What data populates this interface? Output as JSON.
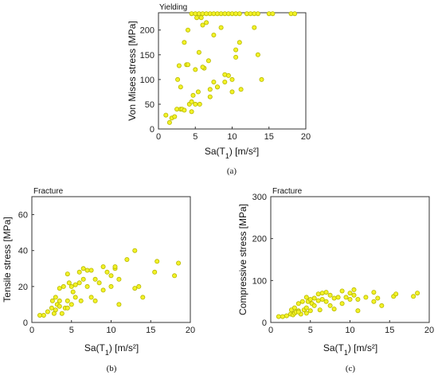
{
  "colors": {
    "marker_fill": "#f2f227",
    "marker_stroke": "#b8b800",
    "axis": "#333333"
  },
  "chart_data": [
    {
      "id": "a",
      "type": "scatter",
      "title": "Yielding",
      "caption": "(a)",
      "xlabel_main": "Sa(T",
      "xlabel_sub": "1",
      "xlabel_tail": ") [m/s²]",
      "ylabel": "Von Mises stress [MPa]",
      "xlim": [
        0,
        20
      ],
      "ylim": [
        0,
        235
      ],
      "xticks": [
        "0",
        "5",
        "10",
        "15",
        "20"
      ],
      "yticks": [
        "0",
        "50",
        "100",
        "150",
        "200"
      ],
      "x": [
        1.0,
        1.5,
        1.8,
        2.2,
        2.5,
        2.6,
        2.8,
        3.0,
        3.2,
        3.5,
        3.8,
        4.0,
        4.2,
        4.5,
        4.7,
        5.0,
        5.2,
        5.4,
        5.6,
        5.8,
        6.0,
        6.2,
        6.5,
        6.8,
        7.0,
        7.5,
        8.0,
        8.5,
        9.0,
        9.5,
        10.0,
        10.5,
        11.0,
        11.2,
        3.0,
        3.5,
        4.0,
        4.5,
        5.0,
        5.5,
        6.0,
        7.0,
        7.5,
        8.0,
        9.0,
        10.0,
        10.5,
        13.0,
        13.5,
        14.0,
        4.5,
        5.0,
        5.5,
        6.0,
        6.5,
        7.0,
        7.5,
        8.0,
        8.5,
        9.0,
        9.5,
        10.0,
        10.5,
        11.0,
        12.0,
        12.5,
        13.0,
        13.5,
        15.0,
        15.5,
        18.0,
        18.5
      ],
      "y": [
        28,
        13,
        22,
        25,
        40,
        100,
        128,
        40,
        40,
        38,
        130,
        200,
        50,
        55,
        68,
        50,
        225,
        75,
        50,
        225,
        210,
        123,
        215,
        138,
        65,
        190,
        85,
        205,
        110,
        108,
        100,
        145,
        175,
        80,
        85,
        175,
        130,
        35,
        120,
        155,
        125,
        80,
        95,
        85,
        95,
        75,
        160,
        205,
        150,
        100,
        233,
        233,
        233,
        233,
        233,
        233,
        233,
        233,
        233,
        233,
        233,
        233,
        233,
        233,
        233,
        233,
        233,
        233,
        233,
        233,
        233,
        233
      ]
    },
    {
      "id": "b",
      "type": "scatter",
      "title": "Fracture",
      "caption": "(b)",
      "xlabel_main": "Sa(T",
      "xlabel_sub": "1",
      "xlabel_tail": ") [m/s²]",
      "ylabel": "Tensile stress [MPa]",
      "xlim": [
        0,
        20
      ],
      "ylim": [
        0,
        70
      ],
      "xticks": [
        "0",
        "5",
        "10",
        "15",
        "20"
      ],
      "yticks": [
        "0",
        "20",
        "40",
        "60"
      ],
      "x": [
        1.0,
        1.5,
        2.0,
        2.5,
        2.6,
        2.8,
        3.0,
        3.0,
        3.2,
        3.5,
        3.5,
        3.8,
        4.0,
        4.2,
        4.5,
        4.5,
        4.7,
        5.0,
        5.0,
        5.2,
        5.5,
        5.5,
        6.0,
        6.0,
        6.2,
        6.5,
        6.5,
        7.0,
        7.0,
        7.5,
        7.5,
        8.0,
        8.0,
        8.5,
        9.0,
        9.0,
        9.5,
        10.0,
        10.0,
        10.5,
        10.5,
        11.0,
        11.0,
        12.0,
        13.0,
        13.0,
        13.5,
        14.0,
        15.5,
        15.8,
        18.0,
        18.5,
        3.5,
        4.5
      ],
      "y": [
        4,
        4,
        6,
        8,
        12,
        5,
        7,
        14,
        10,
        9,
        19,
        5,
        20,
        8,
        27,
        12,
        22,
        10,
        20,
        17,
        14,
        21,
        28,
        22,
        12,
        24,
        30,
        20,
        29,
        14,
        29,
        24,
        12,
        22,
        31,
        18,
        28,
        20,
        26,
        30,
        31,
        10,
        24,
        35,
        19,
        40,
        20,
        14,
        28,
        34,
        26,
        33,
        12,
        8
      ]
    },
    {
      "id": "c",
      "type": "scatter",
      "title": "Fracture",
      "caption": "(c)",
      "xlabel_main": "Sa(T",
      "xlabel_sub": "1",
      "xlabel_tail": ") [m/s²]",
      "ylabel": "Compressive stress [MPa]",
      "xlim": [
        0,
        20
      ],
      "ylim": [
        0,
        300
      ],
      "xticks": [
        "0",
        "5",
        "10",
        "15",
        "20"
      ],
      "yticks": [
        "0",
        "100",
        "200",
        "300"
      ],
      "x": [
        1.0,
        1.5,
        2.0,
        2.5,
        2.6,
        2.8,
        3.0,
        3.0,
        3.2,
        3.5,
        3.5,
        3.8,
        4.0,
        4.2,
        4.5,
        4.5,
        4.7,
        5.0,
        5.0,
        5.2,
        5.5,
        5.5,
        6.0,
        6.0,
        6.2,
        6.5,
        6.5,
        7.0,
        7.0,
        7.5,
        7.5,
        8.0,
        8.0,
        8.5,
        9.0,
        9.0,
        9.5,
        10.0,
        10.0,
        10.5,
        10.5,
        11.0,
        11.0,
        12.0,
        13.0,
        13.0,
        13.5,
        14.0,
        15.5,
        15.8,
        18.0,
        18.5,
        3.5,
        4.5
      ],
      "y": [
        14,
        14,
        16,
        20,
        30,
        18,
        22,
        35,
        25,
        28,
        45,
        20,
        50,
        30,
        60,
        35,
        50,
        28,
        55,
        45,
        40,
        58,
        68,
        52,
        30,
        55,
        70,
        50,
        72,
        40,
        65,
        58,
        32,
        60,
        75,
        45,
        60,
        55,
        70,
        65,
        78,
        28,
        55,
        60,
        50,
        72,
        58,
        40,
        62,
        68,
        62,
        70,
        25,
        22
      ]
    }
  ]
}
